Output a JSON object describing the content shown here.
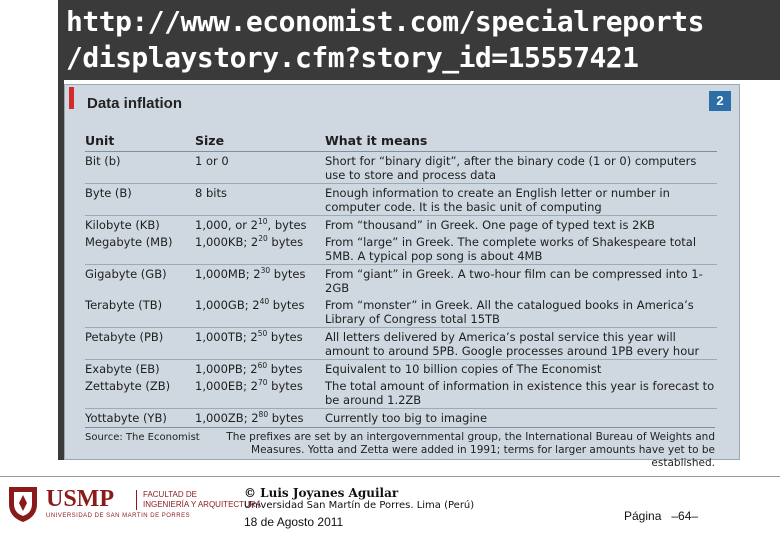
{
  "title": {
    "line1": "http://www.economist.com/specialreports",
    "line2": "/displaystory.cfm?story_id=15557421"
  },
  "figure": {
    "title": "Data inflation",
    "number": "2",
    "headers": [
      "Unit",
      "Size",
      "What it means"
    ],
    "rows": [
      {
        "unit": "Bit (b)",
        "size": "1 or 0",
        "meaning": "Short for “binary digit”, after the binary code (1 or 0) computers use to store and process data",
        "sep": false
      },
      {
        "unit": "Byte (B)",
        "size": "8 bits",
        "meaning": "Enough information to create an English letter or number in computer code. It is the basic unit of computing",
        "sep": true
      },
      {
        "unit": "Kilobyte (KB)",
        "size": "1,000, or 2",
        "exp": "10",
        "size_suffix": ", bytes",
        "meaning": "From “thousand” in Greek. One page of typed text is 2KB",
        "sep": true
      },
      {
        "unit": "Megabyte (MB)",
        "size": "1,000KB; 2",
        "exp": "20",
        "size_suffix": " bytes",
        "meaning": "From “large” in Greek. The complete works of Shakespeare total 5MB. A typical pop song is about 4MB",
        "sep": false
      },
      {
        "unit": "Gigabyte (GB)",
        "size": "1,000MB; 2",
        "exp": "30",
        "size_suffix": " bytes",
        "meaning": "From “giant” in Greek. A two-hour film can be compressed into 1-2GB",
        "sep": true
      },
      {
        "unit": "Terabyte (TB)",
        "size": "1,000GB; 2",
        "exp": "40",
        "size_suffix": " bytes",
        "meaning": "From “monster” in Greek. All the catalogued books in America’s Library of Congress total 15TB",
        "sep": false
      },
      {
        "unit": "Petabyte (PB)",
        "size": "1,000TB; 2",
        "exp": "50",
        "size_suffix": " bytes",
        "meaning": "All letters delivered by America’s postal service this year will amount to around 5PB. Google processes around 1PB every hour",
        "sep": true
      },
      {
        "unit": "Exabyte (EB)",
        "size": "1,000PB; 2",
        "exp": "60",
        "size_suffix": " bytes",
        "meaning": "Equivalent to 10 billion copies of The Economist",
        "sep": true
      },
      {
        "unit": "Zettabyte (ZB)",
        "size": "1,000EB; 2",
        "exp": "70",
        "size_suffix": " bytes",
        "meaning": "The total amount of information in existence this year is forecast to be around 1.2ZB",
        "sep": false
      },
      {
        "unit": "Yottabyte (YB)",
        "size": "1,000ZB; 2",
        "exp": "80",
        "size_suffix": " bytes",
        "meaning": "Currently too big to imagine",
        "sep": true
      }
    ],
    "source": "Source: The Economist",
    "note": "The prefixes are set by an intergovernmental group, the International Bureau of Weights and Measures. Yotta and Zetta were added in 1991; terms for larger amounts have yet to be established."
  },
  "footer": {
    "logo_text": "USMP",
    "logo_sub": "UNIVERSIDAD DE SAN MARTIN DE PORRES",
    "faculty_line1": "FACULTAD DE",
    "faculty_line2": "INGENIERÍA Y ARQUITECTURA",
    "copyright": "© Luis Joyanes Aguilar",
    "university": "Universidad San Martín de Porres. Lima (Perú)",
    "date": "18 de Agosto 2011",
    "page_label": "Página",
    "page_number": "–64–"
  },
  "colors": {
    "accent_red": "#d42a2a",
    "figure_bg": "#cfd8e0",
    "badge_blue": "#2d6ea8",
    "title_bg": "#3a3a3a"
  }
}
